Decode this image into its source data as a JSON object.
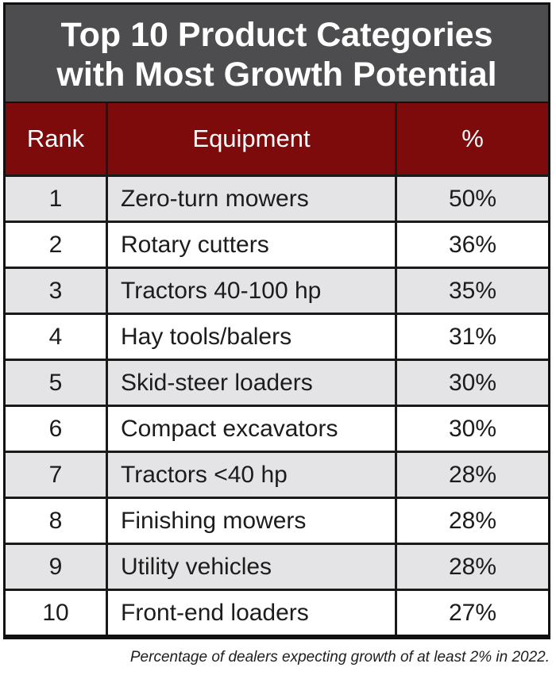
{
  "title": {
    "line1": "Top 10 Product Categories",
    "line2": "with Most Growth Potential"
  },
  "caption": "Percentage of dealers expecting growth of at least 2% in 2022.",
  "colors": {
    "title_bg": "#4d4d4f",
    "header_bg": "#7e0b0b",
    "row_shaded": "#e4e4e6",
    "row_plain": "#ffffff"
  },
  "chart_data": {
    "type": "table",
    "title": "Top 10 Product Categories with Most Growth Potential",
    "columns": [
      "Rank",
      "Equipment",
      "%"
    ],
    "rows": [
      [
        "1",
        "Zero-turn mowers",
        "50%"
      ],
      [
        "2",
        "Rotary cutters",
        "36%"
      ],
      [
        "3",
        "Tractors 40-100 hp",
        "35%"
      ],
      [
        "4",
        "Hay tools/balers",
        "31%"
      ],
      [
        "5",
        "Skid-steer loaders",
        "30%"
      ],
      [
        "6",
        "Compact excavators",
        "30%"
      ],
      [
        "7",
        "Tractors <40 hp",
        "28%"
      ],
      [
        "8",
        "Finishing mowers",
        "28%"
      ],
      [
        "9",
        "Utility vehicles",
        "28%"
      ],
      [
        "10",
        "Front-end loaders",
        "27%"
      ]
    ]
  }
}
